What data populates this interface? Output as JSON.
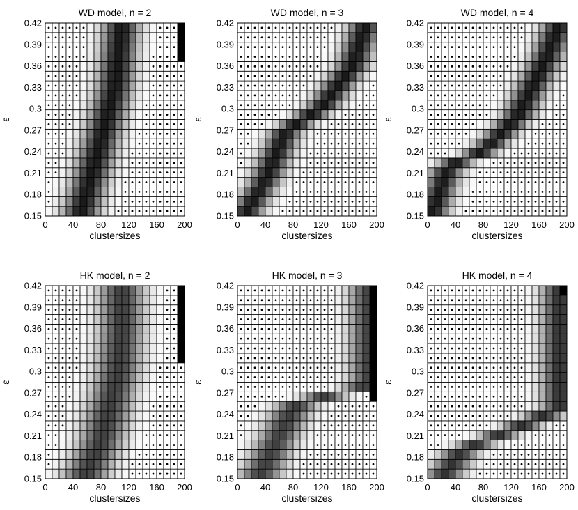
{
  "chart_data": [
    {
      "type": "heatmap",
      "title": "WD model, n = 2",
      "xlabel": "clustersizes",
      "ylabel": "ε",
      "xlim": [
        0,
        200
      ],
      "ylim": [
        0.15,
        0.42
      ],
      "x_ticks": [
        "0",
        "40",
        "80",
        "120",
        "160",
        "200"
      ],
      "y_ticks": [
        "0.15",
        "0.18",
        "0.21",
        "0.24",
        "0.27",
        "0.3",
        "0.33",
        "0.36",
        "0.39",
        "0.42"
      ],
      "ridge": [
        {
          "x": 50,
          "y": 0.15
        },
        {
          "x": 70,
          "y": 0.22
        },
        {
          "x": 100,
          "y": 0.33
        },
        {
          "x": 110,
          "y": 0.42
        }
      ],
      "ridge_width": 18,
      "ridge_peak": 0.9,
      "end_band": {
        "x_from": 195,
        "y_from": 0.36
      }
    },
    {
      "type": "heatmap",
      "title": "WD model, n = 3",
      "xlabel": "clustersizes",
      "ylabel": "ε",
      "xlim": [
        0,
        200
      ],
      "ylim": [
        0.15,
        0.42
      ],
      "x_ticks": [
        "0",
        "40",
        "80",
        "120",
        "160",
        "200"
      ],
      "y_ticks": [
        "0.15",
        "0.18",
        "0.21",
        "0.24",
        "0.27",
        "0.3",
        "0.33",
        "0.36",
        "0.39",
        "0.42"
      ],
      "ridge": [
        {
          "x": 10,
          "y": 0.15
        },
        {
          "x": 40,
          "y": 0.2
        },
        {
          "x": 70,
          "y": 0.27
        },
        {
          "x": 120,
          "y": 0.3
        },
        {
          "x": 165,
          "y": 0.36
        },
        {
          "x": 185,
          "y": 0.42
        }
      ],
      "ridge_width": 16,
      "ridge_peak": 0.9,
      "end_band": null
    },
    {
      "type": "heatmap",
      "title": "WD model, n = 4",
      "xlabel": "clustersizes",
      "ylabel": "ε",
      "xlim": [
        0,
        200
      ],
      "ylim": [
        0.15,
        0.42
      ],
      "x_ticks": [
        "0",
        "40",
        "80",
        "120",
        "160",
        "200"
      ],
      "y_ticks": [
        "0.15",
        "0.18",
        "0.21",
        "0.24",
        "0.27",
        "0.3",
        "0.33",
        "0.36",
        "0.39",
        "0.42"
      ],
      "ridge": [
        {
          "x": 5,
          "y": 0.15
        },
        {
          "x": 30,
          "y": 0.22
        },
        {
          "x": 80,
          "y": 0.24
        },
        {
          "x": 130,
          "y": 0.29
        },
        {
          "x": 170,
          "y": 0.37
        },
        {
          "x": 190,
          "y": 0.42
        }
      ],
      "ridge_width": 16,
      "ridge_peak": 0.9,
      "end_band": null
    },
    {
      "type": "heatmap",
      "title": "HK model, n = 2",
      "xlabel": "clustersizes",
      "ylabel": "ε",
      "xlim": [
        0,
        200
      ],
      "ylim": [
        0.15,
        0.42
      ],
      "x_ticks": [
        "0",
        "40",
        "80",
        "120",
        "160",
        "200"
      ],
      "y_ticks": [
        "0.15",
        "0.18",
        "0.21",
        "0.24",
        "0.27",
        "0.3",
        "0.33",
        "0.36",
        "0.39",
        "0.42"
      ],
      "ridge": [
        {
          "x": 55,
          "y": 0.15
        },
        {
          "x": 80,
          "y": 0.2
        },
        {
          "x": 105,
          "y": 0.3
        },
        {
          "x": 110,
          "y": 0.36
        }
      ],
      "ridge_width": 22,
      "ridge_peak": 0.75,
      "end_band": {
        "x_from": 195,
        "y_from": 0.31
      }
    },
    {
      "type": "heatmap",
      "title": "HK model, n = 3",
      "xlabel": "clustersizes",
      "ylabel": "ε",
      "xlim": [
        0,
        200
      ],
      "ylim": [
        0.15,
        0.42
      ],
      "x_ticks": [
        "0",
        "40",
        "80",
        "120",
        "160",
        "200"
      ],
      "y_ticks": [
        "0.15",
        "0.18",
        "0.21",
        "0.24",
        "0.27",
        "0.3",
        "0.33",
        "0.36",
        "0.39",
        "0.42"
      ],
      "ridge": [
        {
          "x": 30,
          "y": 0.15
        },
        {
          "x": 55,
          "y": 0.2
        },
        {
          "x": 80,
          "y": 0.25
        },
        {
          "x": 140,
          "y": 0.27
        },
        {
          "x": 190,
          "y": 0.28
        }
      ],
      "ridge_width": 20,
      "ridge_peak": 0.75,
      "end_band": {
        "x_from": 195,
        "y_from": 0.26
      }
    },
    {
      "type": "heatmap",
      "title": "HK model, n = 4",
      "xlabel": "clustersizes",
      "ylabel": "ε",
      "xlim": [
        0,
        200
      ],
      "ylim": [
        0.15,
        0.42
      ],
      "x_ticks": [
        "0",
        "40",
        "80",
        "120",
        "160",
        "200"
      ],
      "y_ticks": [
        "0.15",
        "0.18",
        "0.21",
        "0.24",
        "0.27",
        "0.3",
        "0.33",
        "0.36",
        "0.39",
        "0.42"
      ],
      "ridge": [
        {
          "x": 20,
          "y": 0.15
        },
        {
          "x": 50,
          "y": 0.19
        },
        {
          "x": 100,
          "y": 0.21
        },
        {
          "x": 150,
          "y": 0.23
        },
        {
          "x": 190,
          "y": 0.25
        }
      ],
      "ridge_width": 18,
      "ridge_peak": 0.8,
      "end_band": {
        "x_from": 195,
        "y_from": 0.41
      }
    }
  ]
}
